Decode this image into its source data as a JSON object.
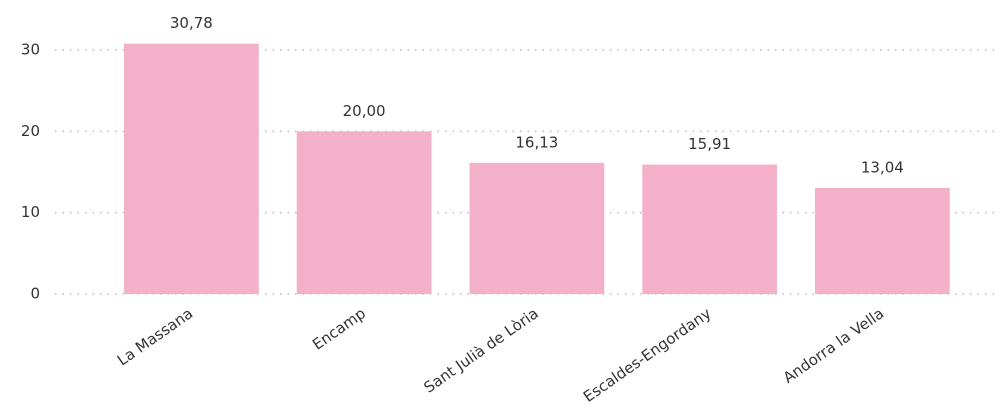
{
  "chart_data": {
    "type": "bar",
    "categories": [
      "La Massana",
      "Encamp",
      "Sant Julià de Lòria",
      "Escaldes-Engordany",
      "Andorra la Vella"
    ],
    "values": [
      30.78,
      20.0,
      16.13,
      15.91,
      13.04
    ],
    "value_labels": [
      "30,78",
      "20,00",
      "16,13",
      "15,91",
      "13,04"
    ],
    "color": "#f4b0c8",
    "ylim": [
      0,
      33
    ],
    "yticks": [
      0,
      10,
      20,
      30
    ],
    "grid": true
  }
}
